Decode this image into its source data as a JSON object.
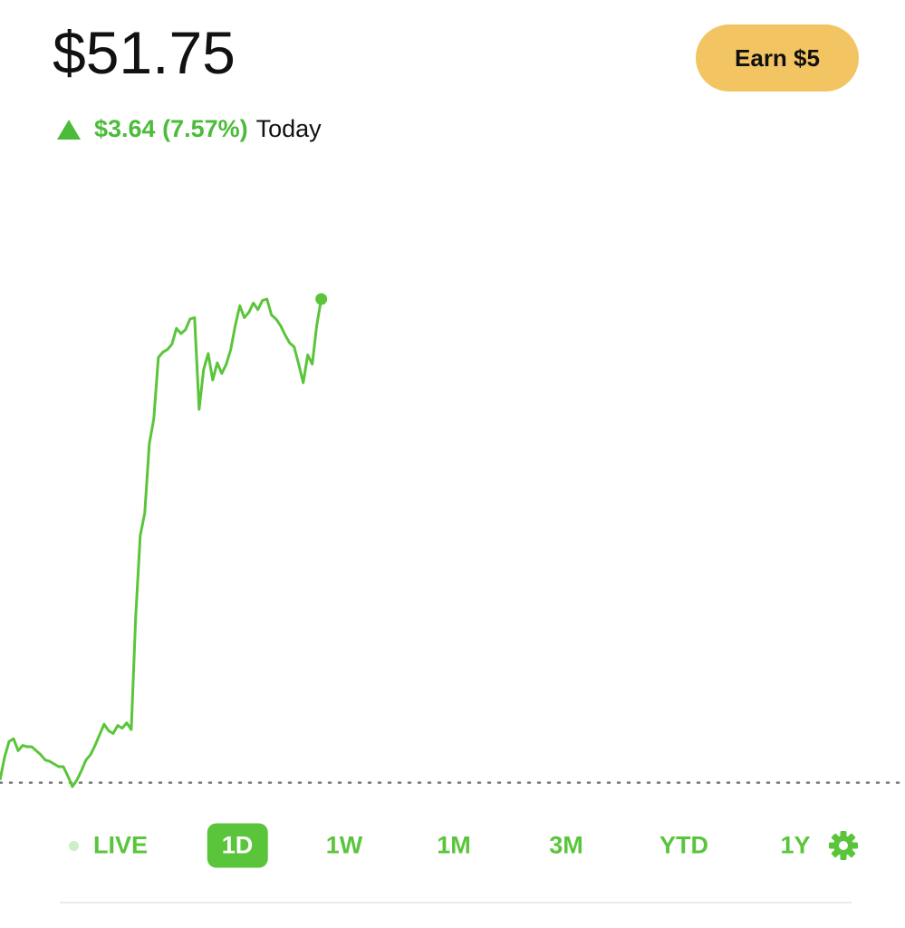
{
  "header": {
    "price": "$51.75",
    "change": "$3.64 (7.57%)",
    "period": "Today"
  },
  "button": "Earn $5",
  "tabs": [
    "LIVE",
    "1D",
    "1W",
    "1M",
    "3M",
    "YTD",
    "1Y"
  ],
  "selected_tab": 1,
  "chart_data": {
    "type": "line",
    "color": "#5ac53b",
    "values": [
      48.13,
      48.3,
      48.42,
      48.44,
      48.35,
      48.39,
      48.38,
      48.38,
      48.35,
      48.32,
      48.28,
      48.27,
      48.25,
      48.23,
      48.23,
      48.16,
      48.08,
      48.13,
      48.2,
      48.28,
      48.32,
      48.39,
      48.47,
      48.55,
      48.5,
      48.48,
      48.54,
      48.52,
      48.56,
      48.51,
      49.36,
      49.97,
      50.14,
      50.66,
      50.85,
      51.31,
      51.35,
      51.37,
      51.41,
      51.53,
      51.49,
      51.52,
      51.6,
      51.61,
      50.92,
      51.22,
      51.34,
      51.14,
      51.27,
      51.19,
      51.26,
      51.37,
      51.55,
      51.7,
      51.61,
      51.65,
      51.72,
      51.67,
      51.74,
      51.75,
      51.63,
      51.6,
      51.55,
      51.48,
      51.42,
      51.39,
      51.26,
      51.12,
      51.33,
      51.26,
      51.55,
      51.75
    ],
    "previous_close": 48.11,
    "xlim": [
      0,
      200
    ],
    "ylim": [
      48.08,
      51.75
    ]
  }
}
